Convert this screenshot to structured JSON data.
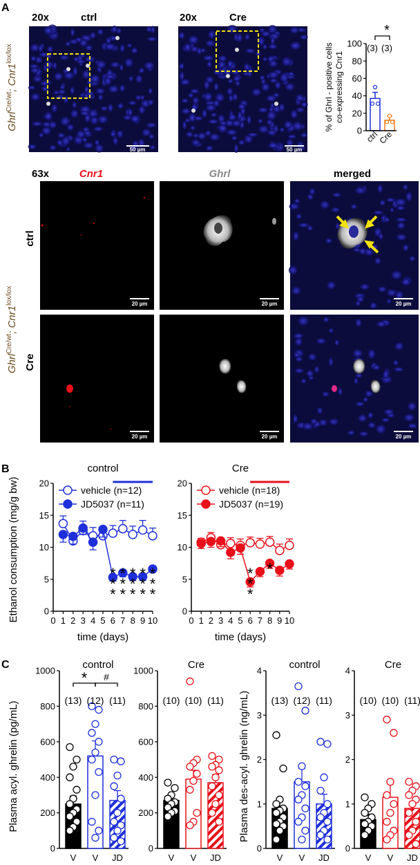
{
  "panels": {
    "a": "A",
    "b": "B",
    "c": "C"
  },
  "panelA": {
    "mag_top_left": "20x",
    "mag_top_right": "20x",
    "cond_left": "ctrl",
    "cond_right": "Cre",
    "scale_top": "50 µm",
    "mag_bottom": "63x",
    "col_cnr1": "Cnr1",
    "col_ghrl": "Ghrl",
    "col_merged": "merged",
    "row_ctrl": "ctrl",
    "row_cre": "Cre",
    "scale_bottom": "20 µm",
    "genotype_main": "Ghrl",
    "genotype_sup1": "Cre/wt",
    "genotype_mid": "; Cnr1",
    "genotype_sup2": "lox/lox"
  },
  "chart_data": [
    {
      "id": "A-bar",
      "type": "bar",
      "ylabel_line1": "% of Ghrl - positive cells",
      "ylabel_line2": "co-expressing Cnr1",
      "ylim": [
        0,
        100
      ],
      "yticks": [
        0,
        20,
        40,
        60,
        80,
        100
      ],
      "categories": [
        "ctrl",
        "Cre"
      ],
      "values": [
        37,
        12
      ],
      "errors": [
        7,
        5
      ],
      "points": [
        [
          50,
          31,
          31
        ],
        [
          17,
          10,
          10
        ]
      ],
      "n_labels": [
        "(3)",
        "(3)"
      ],
      "significance": "*",
      "colors": [
        "#1f2fd9",
        "#f07d1a"
      ]
    },
    {
      "id": "B-control",
      "type": "line",
      "title": "control",
      "xlabel": "time (days)",
      "ylabel": "Ethanol consumption (mg/g bw)",
      "ylim": [
        0,
        20
      ],
      "yticks": [
        0,
        5,
        10,
        15,
        20
      ],
      "xlim": [
        0,
        10
      ],
      "xticks": [
        0,
        1,
        2,
        3,
        4,
        5,
        6,
        7,
        8,
        9,
        10
      ],
      "treatment_bar": [
        6,
        10
      ],
      "color": "#1f2fd9",
      "series": [
        {
          "name": "vehicle (n=12)",
          "filled": false,
          "x": [
            1,
            2,
            3,
            4,
            5,
            6,
            7,
            8,
            9,
            10
          ],
          "y": [
            13.7,
            11.0,
            12.6,
            11.8,
            11.8,
            12.2,
            12.9,
            12.0,
            12.7,
            11.8
          ],
          "err": [
            1.2,
            1.0,
            1.5,
            1.3,
            0.8,
            1.2,
            1.3,
            1.3,
            1.5,
            1.2
          ]
        },
        {
          "name": "JD5037 (n=11)",
          "filled": true,
          "x": [
            1,
            2,
            3,
            4,
            5,
            6,
            7,
            8,
            9,
            10
          ],
          "y": [
            12.0,
            11.7,
            13.0,
            10.8,
            12.8,
            5.3,
            6.0,
            5.4,
            5.4,
            6.6
          ],
          "err": [
            1.2,
            1.2,
            1.0,
            1.2,
            1.2,
            0.6,
            0.6,
            0.6,
            0.6,
            0.5
          ]
        }
      ],
      "sig": [
        {
          "x": 6,
          "label": "***"
        },
        {
          "x": 7,
          "label": "***"
        },
        {
          "x": 8,
          "label": "***"
        },
        {
          "x": 9,
          "label": "***"
        },
        {
          "x": 10,
          "label": "***"
        }
      ]
    },
    {
      "id": "B-cre",
      "type": "line",
      "title": "Cre",
      "xlabel": "time (days)",
      "ylabel": "",
      "ylim": [
        0,
        20
      ],
      "yticks": [
        0,
        5,
        10,
        15,
        20
      ],
      "xlim": [
        0,
        10
      ],
      "xticks": [
        0,
        1,
        2,
        3,
        4,
        5,
        6,
        7,
        8,
        9,
        10
      ],
      "treatment_bar": [
        6,
        10
      ],
      "color": "#e8101a",
      "series": [
        {
          "name": "vehicle (n=18)",
          "filled": false,
          "x": [
            1,
            2,
            3,
            4,
            5,
            6,
            7,
            8,
            9,
            10
          ],
          "y": [
            10.8,
            11.5,
            10.4,
            10.6,
            10.3,
            10.7,
            10.5,
            10.8,
            9.5,
            10.3
          ],
          "err": [
            0.6,
            0.8,
            0.9,
            0.9,
            1.0,
            0.9,
            0.9,
            0.9,
            1.0,
            1.0
          ]
        },
        {
          "name": "JD5037 (n=19)",
          "filled": true,
          "x": [
            1,
            2,
            3,
            4,
            5,
            6,
            7,
            8,
            9,
            10
          ],
          "y": [
            10.6,
            10.9,
            11.0,
            9.2,
            9.9,
            4.6,
            6.2,
            7.5,
            6.4,
            7.4
          ],
          "err": [
            0.8,
            0.9,
            0.9,
            1.0,
            1.0,
            0.8,
            0.8,
            0.8,
            0.9,
            0.8
          ]
        }
      ],
      "sig": [
        {
          "x": 6,
          "label": "***"
        },
        {
          "x": 8,
          "label": "*"
        }
      ]
    },
    {
      "id": "C-acyl-control",
      "type": "bar",
      "title": "control",
      "ylabel": "Plasma acyl. ghrelin (pg/mL)",
      "ylim": [
        0,
        1000
      ],
      "yticks": [
        0,
        200,
        400,
        600,
        800,
        1000
      ],
      "categories": [
        "V",
        "V",
        "JD"
      ],
      "values": [
        250,
        520,
        270
      ],
      "errors": [
        45,
        85,
        55
      ],
      "n_labels": [
        "(13)",
        "(12)",
        "(11)"
      ],
      "sig": [
        {
          "from": 0,
          "to": 1,
          "label": "*"
        },
        {
          "from": 1,
          "to": 2,
          "label": "#"
        }
      ],
      "points": [
        [
          570,
          500,
          460,
          400,
          330,
          280,
          250,
          220,
          200,
          180,
          150,
          120,
          100
        ],
        [
          800,
          780,
          700,
          650,
          600,
          540,
          500,
          430,
          300,
          150,
          100,
          60
        ],
        [
          500,
          490,
          410,
          350,
          280,
          200,
          150,
          130,
          100,
          60,
          40
        ]
      ]
    },
    {
      "id": "C-acyl-cre",
      "type": "bar",
      "title": "Cre",
      "ylabel": "",
      "ylim": [
        0,
        1000
      ],
      "yticks": [
        0,
        200,
        400,
        600,
        800,
        1000
      ],
      "categories": [
        "V",
        "V",
        "JD"
      ],
      "values": [
        270,
        390,
        370
      ],
      "errors": [
        30,
        50,
        45
      ],
      "n_labels": [
        "(10)",
        "(10)",
        "(11)"
      ],
      "points": [
        [
          370,
          340,
          300,
          280,
          260,
          250,
          230,
          210,
          200,
          180
        ],
        [
          940,
          500,
          480,
          460,
          420,
          380,
          330,
          200,
          150,
          130
        ],
        [
          520,
          500,
          470,
          460,
          440,
          400,
          350,
          300,
          250,
          200,
          150
        ]
      ]
    },
    {
      "id": "C-desacyl-control",
      "type": "bar",
      "title": "control",
      "ylabel": "Plasma des-acyl. ghrelin (ng/mL)",
      "ylim": [
        0,
        4
      ],
      "yticks": [
        0,
        1,
        2,
        3,
        4
      ],
      "categories": [
        "V",
        "V",
        "JD"
      ],
      "values": [
        0.9,
        1.5,
        1.0
      ],
      "errors": [
        0.18,
        0.3,
        0.22
      ],
      "n_labels": [
        "(13)",
        "(12)",
        "(11)"
      ],
      "points": [
        [
          2.55,
          1.8,
          1.1,
          1.0,
          0.9,
          0.85,
          0.8,
          0.7,
          0.6,
          0.55,
          0.5,
          0.4,
          0.2
        ],
        [
          3.65,
          3.1,
          1.85,
          1.5,
          1.4,
          1.2,
          1.1,
          0.9,
          0.7,
          0.6,
          0.4,
          0.2
        ],
        [
          2.4,
          2.35,
          1.6,
          1.3,
          1.0,
          0.8,
          0.7,
          0.6,
          0.4,
          0.3,
          0.2
        ]
      ]
    },
    {
      "id": "C-desacyl-cre",
      "type": "bar",
      "title": "Cre",
      "ylabel": "",
      "ylim": [
        0,
        4
      ],
      "yticks": [
        0,
        1,
        2,
        3,
        4
      ],
      "categories": [
        "V",
        "V",
        "JD"
      ],
      "values": [
        0.65,
        1.15,
        0.9
      ],
      "errors": [
        0.12,
        0.3,
        0.15
      ],
      "n_labels": [
        "(10)",
        "(10)",
        "(11)"
      ],
      "points": [
        [
          1.15,
          1.0,
          0.9,
          0.8,
          0.7,
          0.6,
          0.55,
          0.5,
          0.4,
          0.3
        ],
        [
          2.9,
          2.6,
          1.5,
          1.2,
          1.0,
          0.8,
          0.6,
          0.4,
          0.3,
          0.2
        ],
        [
          1.5,
          1.4,
          1.3,
          1.2,
          1.1,
          1.0,
          0.8,
          0.6,
          0.4,
          0.3,
          0.1
        ]
      ]
    }
  ],
  "colors": {
    "blue": "#1f2fd9",
    "red": "#e8101a",
    "orange": "#f07d1a",
    "brown": "#6b4a1f",
    "yellow": "#f2e20c"
  }
}
